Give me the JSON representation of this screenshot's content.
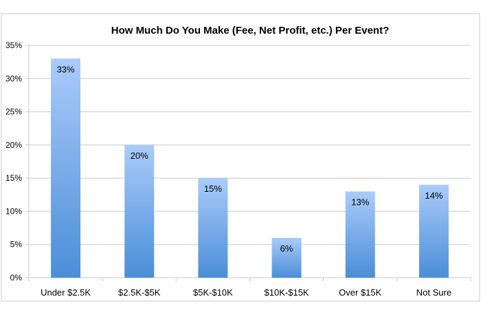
{
  "chart_data": {
    "type": "bar",
    "title": "How Much Do You Make (Fee, Net Profit, etc.) Per Event?",
    "categories": [
      "Under $2.5K",
      "$2.5K-$5K",
      "$5K-$10K",
      "$10K-$15K",
      "Over $15K",
      "Not Sure"
    ],
    "values": [
      33,
      20,
      15,
      6,
      13,
      14
    ],
    "data_labels": [
      "33%",
      "20%",
      "15%",
      "6%",
      "13%",
      "14%"
    ],
    "xlabel": "",
    "ylabel": "",
    "ylim": [
      0,
      35
    ],
    "yticks": [
      0,
      5,
      10,
      15,
      20,
      25,
      30,
      35
    ],
    "ytick_labels": [
      "0%",
      "5%",
      "10%",
      "15%",
      "20%",
      "25%",
      "30%",
      "35%"
    ],
    "grid": true,
    "legend": "none",
    "colors": {
      "bar_top": "#aacbfa",
      "bar_bottom": "#4a8ed8",
      "grid": "#c8c8c8"
    }
  }
}
